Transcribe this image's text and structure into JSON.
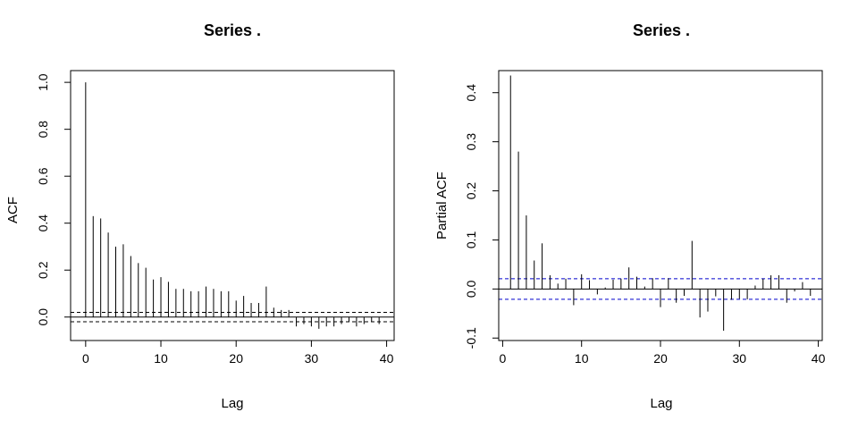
{
  "colors": {
    "ci_acf": "#000000",
    "ci_pacf": "#0000cc",
    "bar": "#000000",
    "frame": "#000000"
  },
  "chart_data": [
    {
      "type": "bar",
      "title": "Series  .",
      "xlabel": "Lag",
      "ylabel": "ACF",
      "xlim": [
        -2,
        41
      ],
      "ylim": [
        -0.1,
        1.05
      ],
      "xticks": [
        0,
        10,
        20,
        30,
        40
      ],
      "yticks": [
        0.0,
        0.2,
        0.4,
        0.6,
        0.8,
        1.0
      ],
      "xtick_labels": [
        "0",
        "10",
        "20",
        "30",
        "40"
      ],
      "ytick_labels": [
        "0.0",
        "0.2",
        "0.4",
        "0.6",
        "0.8",
        "1.0"
      ],
      "confidence_band": 0.02,
      "confidence_color": "#000000",
      "lags": [
        0,
        1,
        2,
        3,
        4,
        5,
        6,
        7,
        8,
        9,
        10,
        11,
        12,
        13,
        14,
        15,
        16,
        17,
        18,
        19,
        20,
        21,
        22,
        23,
        24,
        25,
        26,
        27,
        28,
        29,
        30,
        31,
        32,
        33,
        34,
        35,
        36,
        37,
        38,
        39
      ],
      "values": [
        1.0,
        0.43,
        0.42,
        0.36,
        0.3,
        0.31,
        0.26,
        0.23,
        0.21,
        0.16,
        0.17,
        0.15,
        0.12,
        0.12,
        0.11,
        0.11,
        0.13,
        0.12,
        0.11,
        0.11,
        0.07,
        0.09,
        0.06,
        0.06,
        0.13,
        0.04,
        0.03,
        0.03,
        -0.04,
        -0.03,
        -0.04,
        -0.05,
        -0.04,
        -0.04,
        -0.03,
        -0.02,
        -0.04,
        -0.03,
        -0.02,
        -0.03
      ],
      "grid": false
    },
    {
      "type": "bar",
      "title": "Series  .",
      "xlabel": "Lag",
      "ylabel": "Partial ACF",
      "xlim": [
        -0.5,
        40.5
      ],
      "ylim": [
        -0.105,
        0.445
      ],
      "xticks": [
        0,
        10,
        20,
        30,
        40
      ],
      "yticks": [
        -0.1,
        0.0,
        0.1,
        0.2,
        0.3,
        0.4
      ],
      "xtick_labels": [
        "0",
        "10",
        "20",
        "30",
        "40"
      ],
      "ytick_labels": [
        "-0.1",
        "0.0",
        "0.1",
        "0.2",
        "0.3",
        "0.4"
      ],
      "confidence_band": 0.021,
      "confidence_color": "#0000cc",
      "lags": [
        1,
        2,
        3,
        4,
        5,
        6,
        7,
        8,
        9,
        10,
        11,
        12,
        13,
        14,
        15,
        16,
        17,
        18,
        19,
        20,
        21,
        22,
        23,
        24,
        25,
        26,
        27,
        28,
        29,
        30,
        31,
        32,
        33,
        34,
        35,
        36,
        37,
        38,
        39
      ],
      "values": [
        0.435,
        0.28,
        0.15,
        0.058,
        0.093,
        0.028,
        0.011,
        0.021,
        -0.033,
        0.03,
        0.018,
        -0.011,
        0.003,
        0.019,
        0.021,
        0.044,
        0.025,
        0.005,
        0.022,
        -0.037,
        0.022,
        -0.028,
        -0.014,
        0.098,
        -0.058,
        -0.046,
        -0.015,
        -0.085,
        -0.022,
        -0.02,
        -0.021,
        0.007,
        0.021,
        0.028,
        0.028,
        -0.028,
        -0.005,
        0.014,
        -0.014
      ],
      "grid": false
    }
  ]
}
